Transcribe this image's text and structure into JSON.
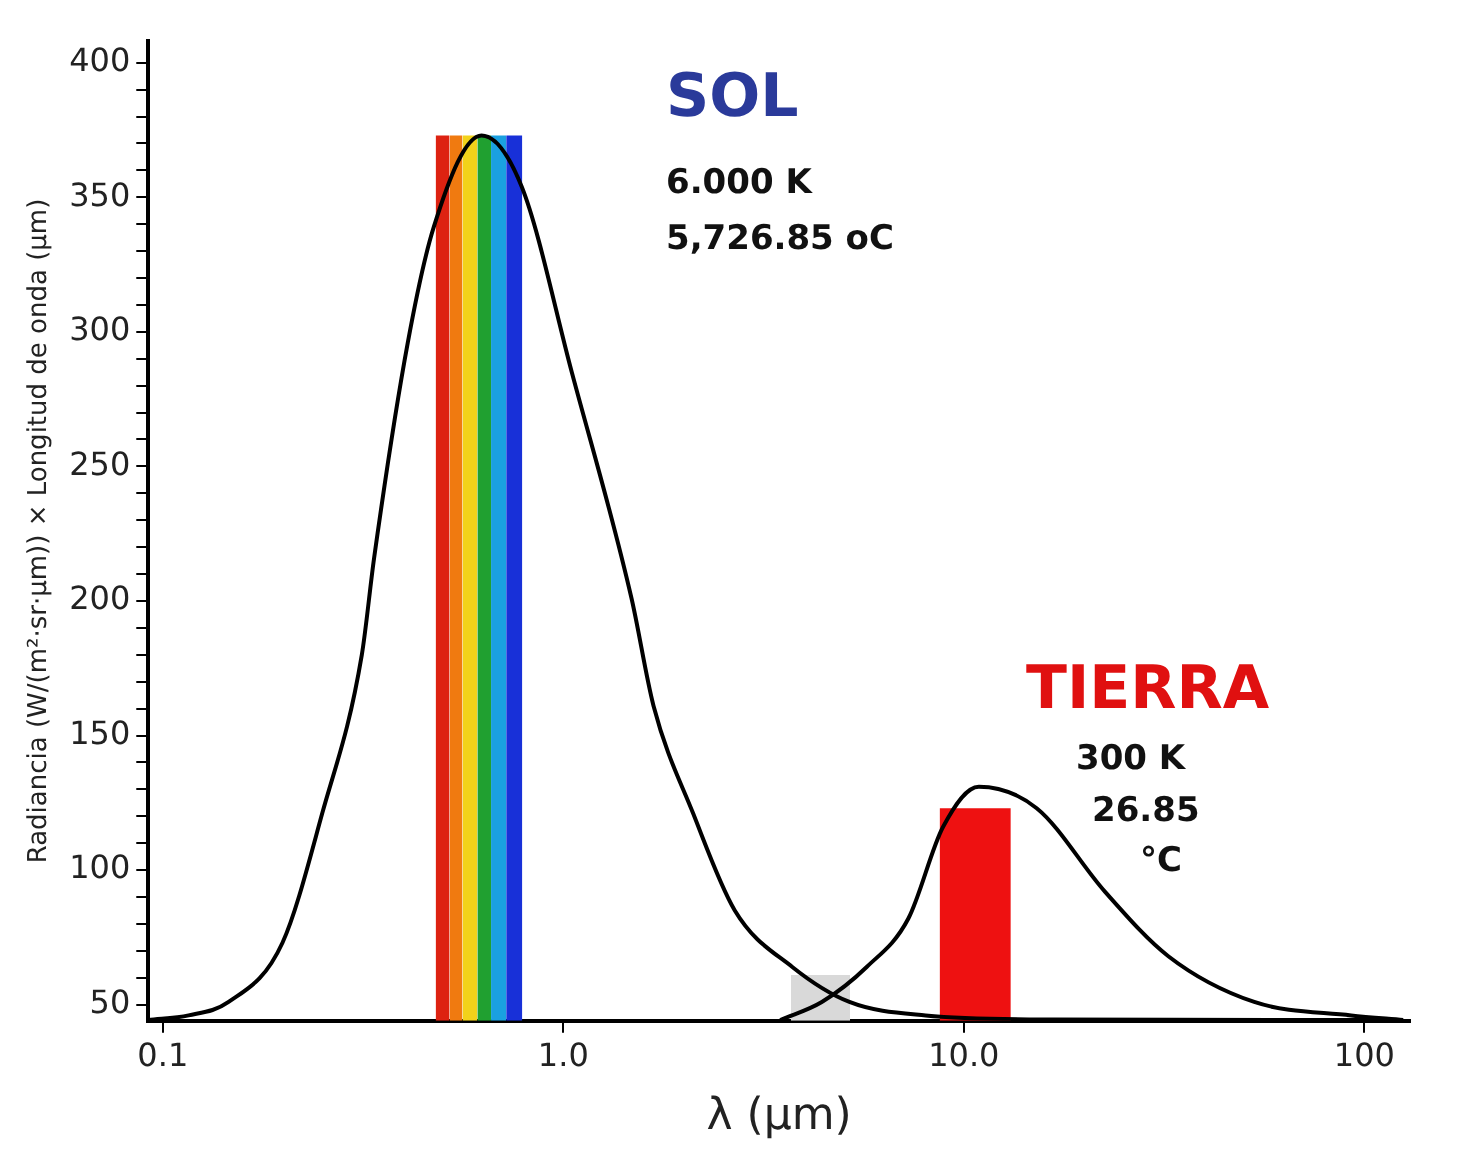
{
  "chart_data": {
    "type": "line",
    "xlabel": "λ (µm)",
    "ylabel": "Radiancia (W/(m²·sr·µm)) × Longitud de onda (µm)",
    "series": [
      {
        "type": "area",
        "color": "#d9d9d9",
        "x": [
          3.7,
          5.2
        ],
        "values": [
          61,
          61
        ]
      },
      {
        "type": "area",
        "color": "#ee1111",
        "x": [
          8.7,
          13.1
        ],
        "values": [
          123,
          123
        ]
      },
      {
        "type": "area",
        "color": "#dd2211",
        "x": [
          0.48,
          0.52
        ],
        "values": [
          373,
          373
        ]
      },
      {
        "type": "area",
        "color": "#f07a10",
        "x": [
          0.52,
          0.56
        ],
        "values": [
          373,
          373
        ]
      },
      {
        "type": "area",
        "color": "#f2d21a",
        "x": [
          0.56,
          0.61
        ],
        "values": [
          373,
          373
        ]
      },
      {
        "type": "area",
        "color": "#20a030",
        "x": [
          0.61,
          0.66
        ],
        "values": [
          373,
          373
        ]
      },
      {
        "type": "area",
        "color": "#1aa0e0",
        "x": [
          0.66,
          0.72
        ],
        "values": [
          373,
          373
        ]
      },
      {
        "type": "area",
        "color": "#1830d8",
        "x": [
          0.72,
          0.79
        ],
        "values": [
          373,
          373
        ]
      },
      {
        "color": "#000000",
        "x": [
          0.092,
          0.116,
          0.146,
          0.199,
          0.25,
          0.314,
          0.337,
          0.409,
          0.475,
          0.625,
          0.787,
          1.05,
          1.48,
          1.68,
          2.11,
          2.68,
          3.73,
          5.18,
          8.03,
          16.7,
          113
        ],
        "values": [
          44.3,
          46,
          51,
          73,
          121,
          180,
          216,
          296,
          339,
          373,
          354,
          285,
          201,
          161,
          121,
          85,
          64,
          51,
          46,
          44.5,
          44.3
        ]
      },
      {
        "color": "#000000",
        "x": [
          3.48,
          4.42,
          5.72,
          7.27,
          8.87,
          10.9,
          15.2,
          22.5,
          32.4,
          53.1,
          92.7,
          125
        ],
        "values": [
          44.3,
          51,
          64,
          82,
          116,
          131,
          123,
          92,
          68,
          51,
          46,
          44.3
        ]
      }
    ],
    "log": "x",
    "xlim": [
      0.092,
      130
    ],
    "xticks": [
      0.1,
      {
        "value": 1,
        "label": "1.0"
      },
      {
        "value": 10,
        "label": "10.0"
      },
      100
    ],
    "ylim": [
      44,
      408
    ],
    "yticks": [
      50,
      {
        "value": 60,
        "label": null
      },
      {
        "value": 70,
        "label": null
      },
      {
        "value": 80,
        "label": null
      },
      {
        "value": 90,
        "label": null
      },
      100,
      {
        "value": 110,
        "label": null
      },
      {
        "value": 120,
        "label": null
      },
      {
        "value": 130,
        "label": null
      },
      {
        "value": 140,
        "label": null
      },
      150,
      {
        "value": 160,
        "label": null
      },
      {
        "value": 170,
        "label": null
      },
      {
        "value": 180,
        "label": null
      },
      {
        "value": 190,
        "label": null
      },
      200,
      {
        "value": 210,
        "label": null
      },
      {
        "value": 220,
        "label": null
      },
      {
        "value": 230,
        "label": null
      },
      {
        "value": 240,
        "label": null
      },
      250,
      {
        "value": 260,
        "label": null
      },
      {
        "value": 270,
        "label": null
      },
      {
        "value": 280,
        "label": null
      },
      {
        "value": 290,
        "label": null
      },
      300,
      {
        "value": 310,
        "label": null
      },
      {
        "value": 320,
        "label": null
      },
      {
        "value": 330,
        "label": null
      },
      {
        "value": 340,
        "label": null
      },
      350,
      {
        "value": 360,
        "label": null
      },
      {
        "value": 370,
        "label": null
      },
      {
        "value": 380,
        "label": null
      },
      {
        "value": 390,
        "label": null
      },
      400
    ],
    "grid": false,
    "legend": false,
    "marker": "none",
    "line_style": "solid",
    "annotations": [
      "SOL",
      "6.000 K",
      "5,726.85 oC",
      "TIERRA",
      "300 K",
      "26.85",
      "°C"
    ]
  }
}
